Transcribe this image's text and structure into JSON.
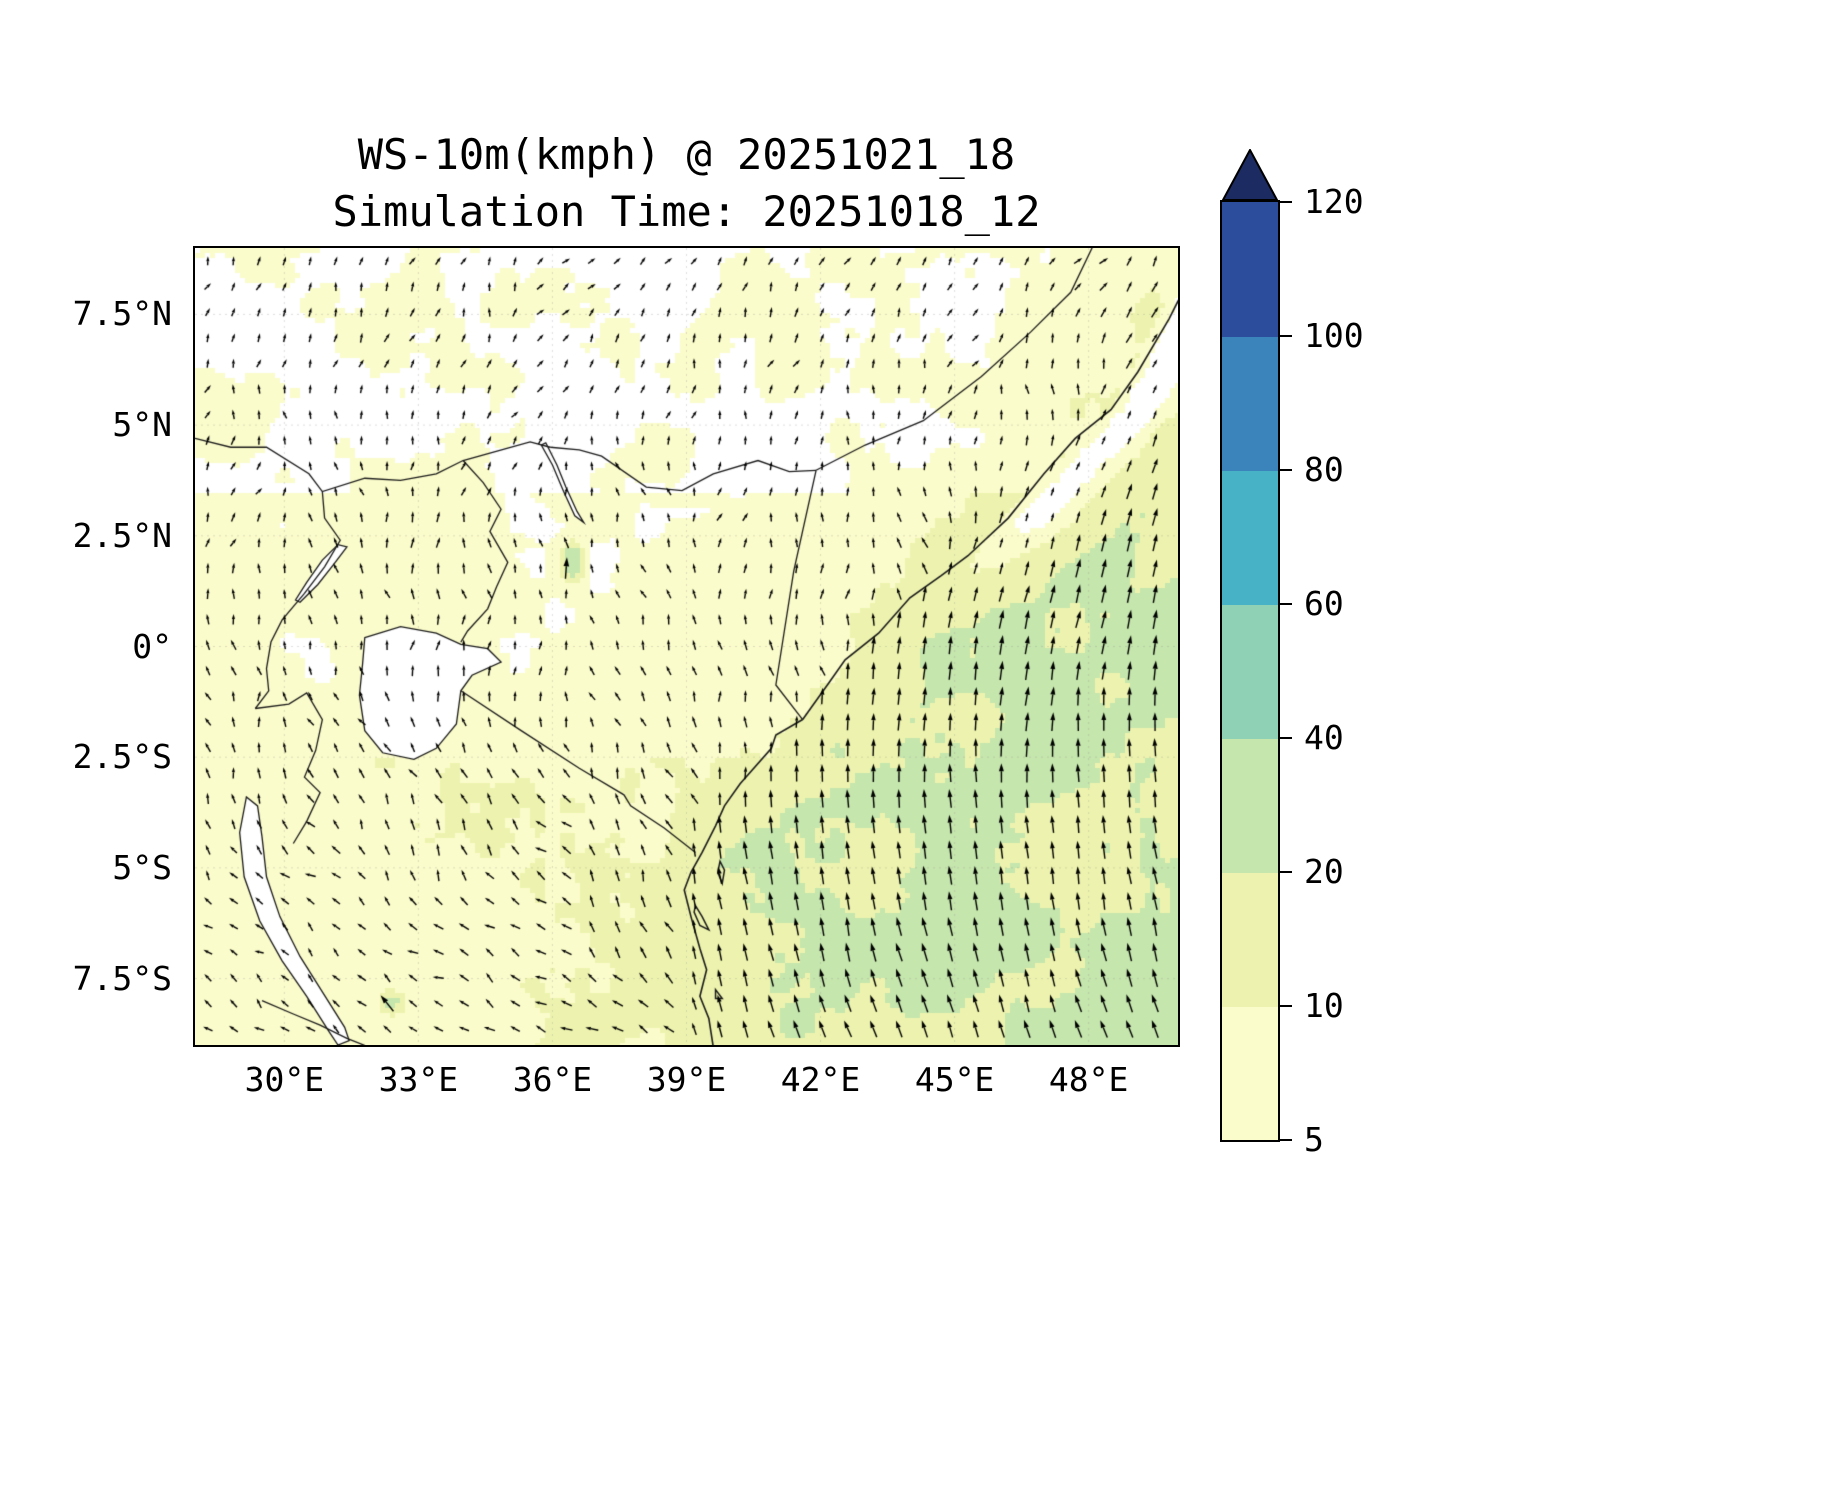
{
  "title": {
    "line1": "WS-10m(kmph) @ 20251021_18",
    "line2": "Simulation Time: 20251018_12"
  },
  "chart_data": {
    "type": "heatmap",
    "variable": "WS-10m",
    "units": "kmph",
    "valid_time": "20251021_18",
    "simulation_time": "20251018_12",
    "overlays": [
      "filled_contours",
      "wind_quiver_arrows",
      "coastlines",
      "country_borders",
      "lakes"
    ],
    "extent": {
      "lon_min": 28.0,
      "lon_max": 50.0,
      "lat_min": -9.0,
      "lat_max": 9.0
    },
    "x_ticks": [
      "30°E",
      "33°E",
      "36°E",
      "39°E",
      "42°E",
      "45°E",
      "48°E"
    ],
    "x_tick_lons": [
      30,
      33,
      36,
      39,
      42,
      45,
      48
    ],
    "y_ticks": [
      "7.5°N",
      "5°N",
      "2.5°N",
      "0°",
      "2.5°S",
      "5°S",
      "7.5°S"
    ],
    "y_tick_lats": [
      7.5,
      5,
      2.5,
      0,
      -2.5,
      -5,
      -7.5
    ],
    "grid": true,
    "colorbar": {
      "position": "right",
      "orientation": "vertical",
      "extend": "max",
      "levels": [
        5,
        10,
        20,
        40,
        60,
        80,
        100,
        120
      ],
      "tick_labels": [
        "5",
        "10",
        "20",
        "40",
        "60",
        "80",
        "100",
        "120"
      ],
      "colors": [
        "#fbfccb",
        "#edf3ae",
        "#c5e6ad",
        "#8ed1b4",
        "#47b2c6",
        "#3a83bb",
        "#2b4d9b"
      ],
      "over_color": "#1c2c63",
      "under_color": "#ffffff"
    },
    "field_summary": {
      "ocean_southeast_kmph": [
        20,
        40
      ],
      "land_kmph": [
        5,
        20
      ],
      "calm_patches_kmph": [
        0,
        5
      ],
      "local_maxima_kmph": [
        40,
        60
      ],
      "ocean_wind_direction": "southerly to south-southwesterly (arrows point north, tilting northeast along Somali coast)",
      "land_wind_direction": "weak and variable, mostly westward over the southwest interior"
    },
    "features": {
      "coastlines": [
        [
          [
            41.6,
            -1.65
          ],
          [
            42.2,
            -0.8
          ],
          [
            42.55,
            -0.3
          ],
          [
            43.3,
            0.3
          ],
          [
            44.0,
            1.1
          ],
          [
            44.7,
            1.6
          ],
          [
            45.3,
            2.05
          ],
          [
            46.2,
            2.9
          ],
          [
            47.0,
            3.9
          ],
          [
            47.7,
            4.7
          ],
          [
            48.5,
            5.35
          ],
          [
            49.1,
            6.2
          ],
          [
            49.8,
            7.4
          ],
          [
            50.1,
            8.0
          ]
        ],
        [
          [
            41.6,
            -1.65
          ],
          [
            41.0,
            -2.0
          ],
          [
            40.9,
            -2.3
          ],
          [
            40.2,
            -3.1
          ],
          [
            39.85,
            -3.6
          ],
          [
            39.65,
            -4.05
          ],
          [
            39.35,
            -4.65
          ],
          [
            39.1,
            -5.1
          ],
          [
            38.95,
            -5.5
          ],
          [
            39.1,
            -6.1
          ],
          [
            39.3,
            -6.82
          ],
          [
            39.45,
            -7.3
          ],
          [
            39.3,
            -7.9
          ],
          [
            39.5,
            -8.4
          ],
          [
            39.6,
            -9.05
          ]
        ]
      ],
      "borders": [
        [
          [
            28.0,
            4.7
          ],
          [
            28.8,
            4.5
          ],
          [
            29.6,
            4.5
          ],
          [
            30.55,
            3.9
          ],
          [
            30.85,
            3.5
          ],
          [
            31.8,
            3.8
          ],
          [
            32.6,
            3.75
          ],
          [
            33.4,
            3.9
          ],
          [
            34.0,
            4.2
          ],
          [
            34.9,
            4.45
          ],
          [
            35.5,
            4.62
          ],
          [
            35.95,
            4.5
          ]
        ],
        [
          [
            35.95,
            4.5
          ],
          [
            36.6,
            4.44
          ],
          [
            37.1,
            4.3
          ],
          [
            38.1,
            3.6
          ],
          [
            38.9,
            3.52
          ],
          [
            39.6,
            3.9
          ],
          [
            40.6,
            4.2
          ],
          [
            41.3,
            3.95
          ],
          [
            41.9,
            3.98
          ]
        ],
        [
          [
            41.9,
            3.98
          ],
          [
            43.0,
            4.55
          ],
          [
            44.3,
            5.1
          ],
          [
            45.6,
            6.1
          ],
          [
            46.7,
            7.1
          ],
          [
            47.6,
            8.0
          ],
          [
            48.1,
            9.05
          ]
        ],
        [
          [
            41.9,
            3.98
          ],
          [
            41.4,
            1.7
          ],
          [
            41.0,
            -0.87
          ],
          [
            41.6,
            -1.65
          ]
        ],
        [
          [
            34.0,
            4.2
          ],
          [
            34.45,
            3.7
          ],
          [
            34.85,
            3.1
          ],
          [
            34.6,
            2.6
          ],
          [
            35.0,
            1.9
          ],
          [
            34.75,
            1.35
          ],
          [
            34.55,
            0.85
          ],
          [
            34.1,
            0.35
          ],
          [
            33.95,
            0.1
          ]
        ],
        [
          [
            30.85,
            3.5
          ],
          [
            30.9,
            2.9
          ],
          [
            31.25,
            2.4
          ],
          [
            30.9,
            1.8
          ],
          [
            30.45,
            1.2
          ],
          [
            29.95,
            0.6
          ],
          [
            29.7,
            0.1
          ],
          [
            29.6,
            -0.5
          ],
          [
            29.65,
            -1.0
          ],
          [
            29.35,
            -1.4
          ]
        ],
        [
          [
            29.35,
            -1.4
          ],
          [
            30.1,
            -1.3
          ],
          [
            30.5,
            -1.05
          ],
          [
            30.85,
            -1.65
          ],
          [
            30.7,
            -2.35
          ],
          [
            30.45,
            -2.95
          ],
          [
            30.8,
            -3.3
          ],
          [
            30.5,
            -3.95
          ],
          [
            30.2,
            -4.45
          ]
        ],
        [
          [
            33.95,
            -1.0
          ],
          [
            35.3,
            -1.9
          ],
          [
            36.6,
            -2.75
          ],
          [
            37.6,
            -3.35
          ],
          [
            37.75,
            -3.6
          ],
          [
            38.5,
            -4.1
          ],
          [
            39.2,
            -4.65
          ]
        ],
        [
          [
            29.5,
            -8.0
          ],
          [
            30.2,
            -8.3
          ],
          [
            30.8,
            -8.55
          ],
          [
            31.4,
            -8.85
          ],
          [
            31.9,
            -9.05
          ]
        ]
      ],
      "lakes": [
        [
          [
            31.8,
            0.2
          ],
          [
            32.6,
            0.45
          ],
          [
            33.4,
            0.3
          ],
          [
            33.95,
            0.05
          ],
          [
            34.55,
            -0.05
          ],
          [
            34.85,
            -0.35
          ],
          [
            34.2,
            -0.65
          ],
          [
            33.95,
            -1.0
          ],
          [
            33.85,
            -1.75
          ],
          [
            33.4,
            -2.3
          ],
          [
            32.9,
            -2.55
          ],
          [
            32.2,
            -2.4
          ],
          [
            31.8,
            -1.9
          ],
          [
            31.68,
            -1.1
          ],
          [
            31.75,
            -0.4
          ]
        ],
        [
          [
            29.15,
            -3.4
          ],
          [
            29.0,
            -4.2
          ],
          [
            29.1,
            -5.2
          ],
          [
            29.45,
            -6.2
          ],
          [
            29.95,
            -7.1
          ],
          [
            30.5,
            -7.9
          ],
          [
            31.0,
            -8.7
          ],
          [
            31.2,
            -9.0
          ],
          [
            31.45,
            -8.9
          ],
          [
            31.35,
            -8.6
          ],
          [
            30.85,
            -7.8
          ],
          [
            30.35,
            -7.0
          ],
          [
            29.9,
            -6.1
          ],
          [
            29.6,
            -5.2
          ],
          [
            29.5,
            -4.3
          ],
          [
            29.4,
            -3.6
          ]
        ],
        [
          [
            35.85,
            4.6
          ],
          [
            36.1,
            4.1
          ],
          [
            36.3,
            3.6
          ],
          [
            36.55,
            3.05
          ],
          [
            36.7,
            2.8
          ],
          [
            36.5,
            2.95
          ],
          [
            36.25,
            3.5
          ],
          [
            36.0,
            4.1
          ],
          [
            35.75,
            4.55
          ]
        ],
        [
          [
            30.35,
            1.0
          ],
          [
            30.75,
            1.4
          ],
          [
            31.1,
            1.85
          ],
          [
            31.4,
            2.25
          ],
          [
            31.2,
            2.3
          ],
          [
            30.85,
            1.95
          ],
          [
            30.5,
            1.45
          ],
          [
            30.25,
            1.05
          ]
        ]
      ],
      "islands": [
        [
          [
            39.75,
            -4.85
          ],
          [
            39.85,
            -5.05
          ],
          [
            39.8,
            -5.35
          ],
          [
            39.7,
            -5.1
          ]
        ],
        [
          [
            39.2,
            -5.85
          ],
          [
            39.35,
            -6.1
          ],
          [
            39.5,
            -6.4
          ],
          [
            39.3,
            -6.3
          ],
          [
            39.17,
            -6.0
          ]
        ],
        [
          [
            39.65,
            -7.75
          ],
          [
            39.8,
            -7.95
          ],
          [
            39.65,
            -7.95
          ]
        ]
      ]
    }
  }
}
